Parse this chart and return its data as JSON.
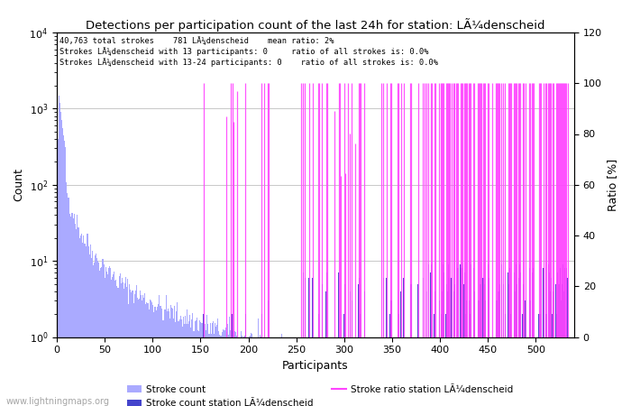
{
  "title": "Detections per participation count of the last 24h for station: LÃ¼denscheid",
  "station": "LÃ¼denscheid",
  "total_strokes": 40763,
  "station_strokes": 781,
  "mean_ratio": "2%",
  "strokes_13": 0,
  "ratio_13": "0.0%",
  "strokes_13_24": 0,
  "ratio_13_24": "0.0%",
  "xlabel": "Participants",
  "ylabel_left": "Count",
  "ylabel_right": "Ratio [%]",
  "x_max": 535,
  "ylim_right": [
    0,
    120
  ],
  "color_total": "#aaaaff",
  "color_station": "#4444cc",
  "color_ratio": "#ff44ff",
  "watermark": "www.lightningmaps.org",
  "legend_stroke_count": "Stroke count",
  "legend_stroke_station": "Stroke count station LÃ¼denscheid",
  "legend_ratio": "Stroke ratio station LÃ¼denscheid",
  "info_line1": "40,763 total strokes    781 LÃ¼denscheid    mean ratio: 2%",
  "info_line2": "Strokes LÃ¼denscheid with 13 participants: 0     ratio of all strokes is: 0.0%",
  "info_line3": "Strokes LÃ¼denscheid with 13-24 participants: 0    ratio of all strokes is: 0.0%"
}
